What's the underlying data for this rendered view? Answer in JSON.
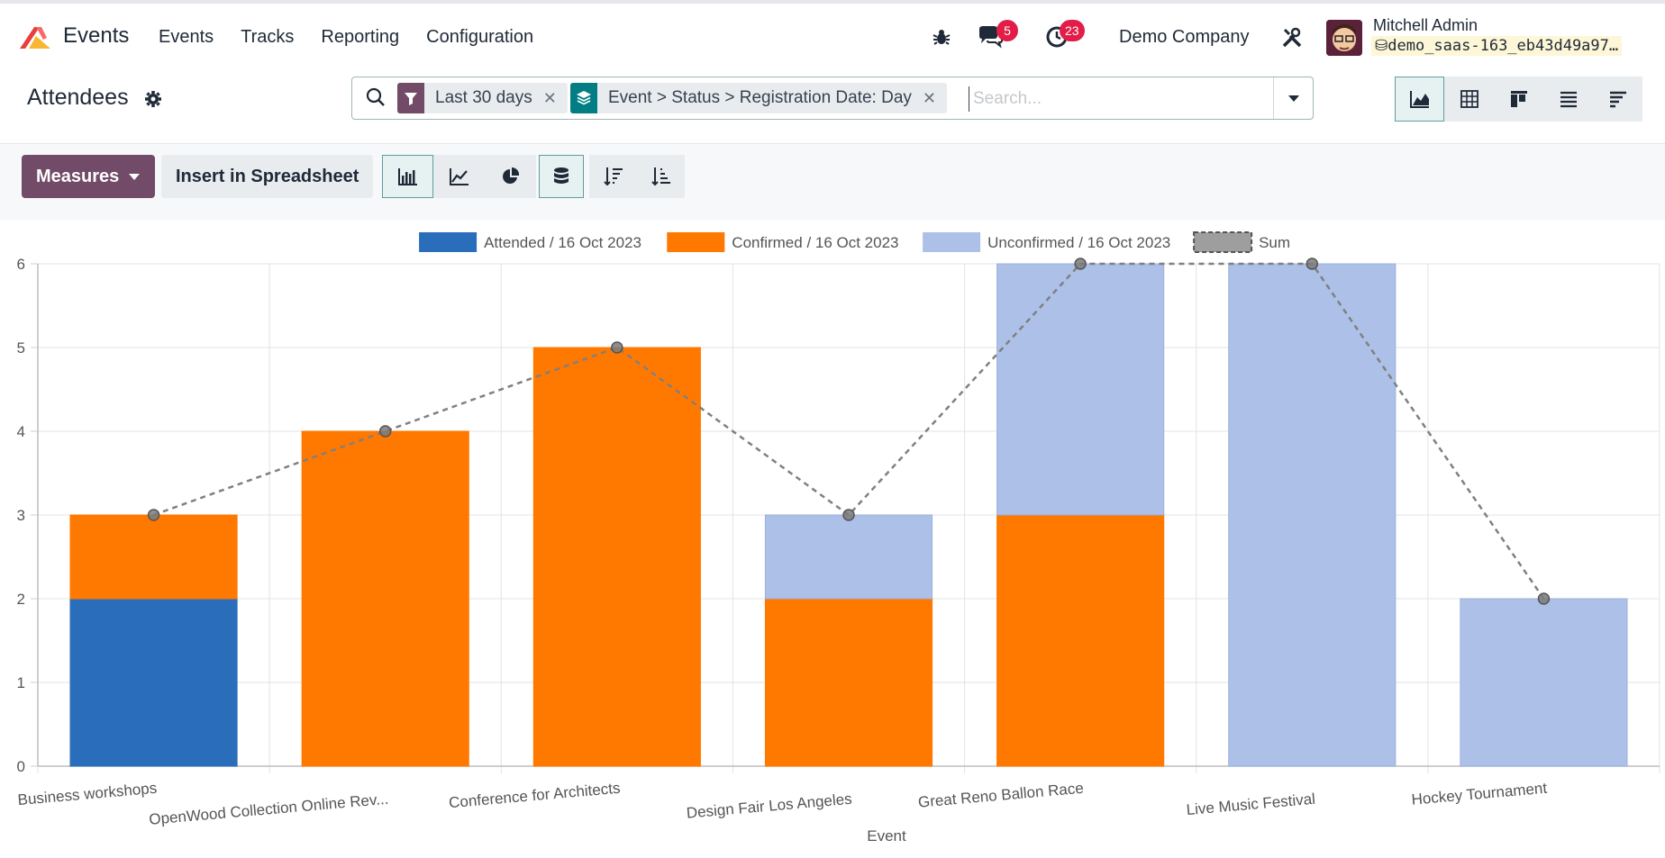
{
  "app": {
    "name": "Events",
    "menu": [
      "Events",
      "Tracks",
      "Reporting",
      "Configuration"
    ]
  },
  "systray": {
    "messages_count": "5",
    "activities_count": "23",
    "company": "Demo Company",
    "user_name": "Mitchell Admin",
    "database": "demo_saas-163_eb43d49a97…"
  },
  "page": {
    "title": "Attendees"
  },
  "search": {
    "facets": [
      {
        "label": "Last 30 days",
        "icon": "filter-icon",
        "color": "#714b67"
      },
      {
        "label": "Event > Status > Registration Date: Day",
        "icon": "layers-icon",
        "color": "#017e84"
      }
    ],
    "placeholder": "Search..."
  },
  "toolbar": {
    "measures_label": "Measures",
    "insert_label": "Insert in Spreadsheet"
  },
  "chart_data": {
    "type": "bar",
    "stacked": true,
    "xlabel": "Event",
    "ylabel": "",
    "ylim": [
      0,
      6
    ],
    "yticks": [
      0,
      1,
      2,
      3,
      4,
      5,
      6
    ],
    "grid": true,
    "legend_position": "top",
    "categories": [
      "Business workshops",
      "OpenWood Collection Online Rev...",
      "Conference for Architects",
      "Design Fair Los Angeles",
      "Great Reno Ballon Race",
      "Live Music Festival",
      "Hockey Tournament"
    ],
    "series": [
      {
        "name": "Attended / 16 Oct 2023",
        "color": "#2a6ebb",
        "values": [
          2,
          0,
          0,
          0,
          0,
          0,
          0
        ]
      },
      {
        "name": "Confirmed / 16 Oct 2023",
        "color": "#ff7800",
        "values": [
          1,
          4,
          5,
          2,
          3,
          0,
          0
        ]
      },
      {
        "name": "Unconfirmed / 16 Oct 2023",
        "color": "#adc0e8",
        "values": [
          0,
          0,
          0,
          1,
          3,
          6,
          2
        ]
      }
    ],
    "sum_line": {
      "name": "Sum",
      "color": "#808080",
      "values": [
        3,
        4,
        5,
        3,
        6,
        6,
        2
      ]
    }
  }
}
